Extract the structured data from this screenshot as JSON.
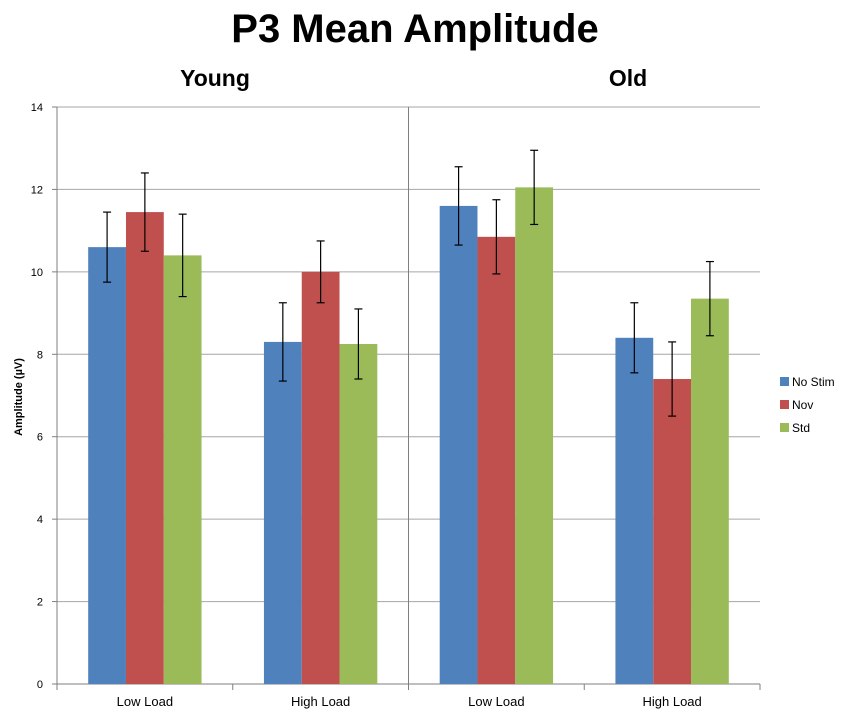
{
  "chart_data": {
    "type": "bar",
    "title": "P3 Mean Amplitude",
    "ylabel": "Amplitude (µV)",
    "xlabel": "",
    "ylim": [
      0,
      14
    ],
    "yticks": [
      0,
      2,
      4,
      6,
      8,
      10,
      12,
      14
    ],
    "grid": true,
    "legend_position": "right",
    "groups": [
      {
        "name": "Young",
        "categories": [
          "Low Load",
          "High Load"
        ],
        "series": [
          {
            "name": "No Stim",
            "values": [
              10.6,
              8.3
            ],
            "errors": [
              0.85,
              0.95
            ]
          },
          {
            "name": "Nov",
            "values": [
              11.45,
              10.0
            ],
            "errors": [
              0.95,
              0.75
            ]
          },
          {
            "name": "Std",
            "values": [
              10.4,
              8.25
            ],
            "errors": [
              1.0,
              0.85
            ]
          }
        ]
      },
      {
        "name": "Old",
        "categories": [
          "Low Load",
          "High Load"
        ],
        "series": [
          {
            "name": "No Stim",
            "values": [
              11.6,
              8.4
            ],
            "errors": [
              0.95,
              0.85
            ]
          },
          {
            "name": "Nov",
            "values": [
              10.85,
              7.4
            ],
            "errors": [
              0.9,
              0.9
            ]
          },
          {
            "name": "Std",
            "values": [
              12.05,
              9.35
            ],
            "errors": [
              0.9,
              0.9
            ]
          }
        ]
      }
    ],
    "legend": [
      "No Stim",
      "Nov",
      "Std"
    ],
    "colors": {
      "No Stim": "#4f81bd",
      "Nov": "#c0504d",
      "Std": "#9bbb59"
    }
  }
}
